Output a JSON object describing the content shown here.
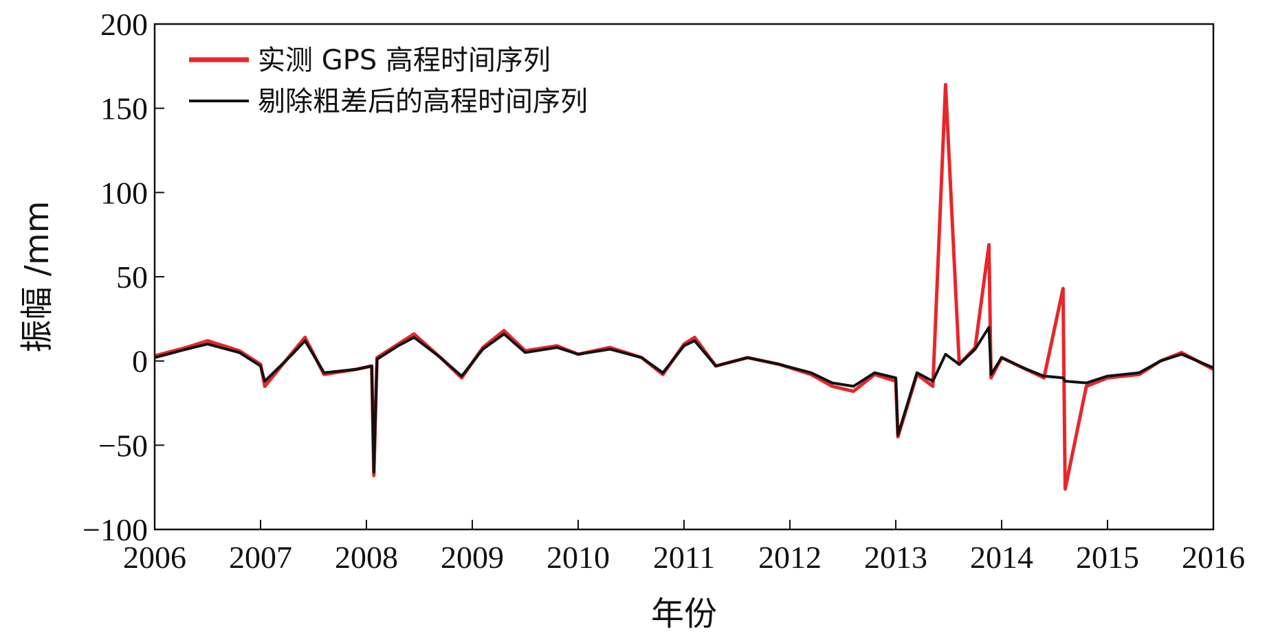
{
  "chart_data": {
    "type": "line",
    "xlabel": "年份",
    "ylabel": "振幅 /mm",
    "xlim": [
      2006,
      2016
    ],
    "ylim": [
      -100,
      200
    ],
    "xticks": [
      2006,
      2007,
      2008,
      2009,
      2010,
      2011,
      2012,
      2013,
      2014,
      2015,
      2016
    ],
    "yticks": [
      -100,
      -50,
      0,
      50,
      100,
      150,
      200
    ],
    "xtick_labels": [
      "2006",
      "2007",
      "2008",
      "2009",
      "2010",
      "2011",
      "2012",
      "2013",
      "2014",
      "2015",
      "2016"
    ],
    "ytick_labels": [
      "−100",
      "−50",
      "0",
      "50",
      "100",
      "150",
      "200"
    ],
    "grid": false,
    "legend_position": "top-left",
    "series": [
      {
        "name": "实测 GPS 高程时间序列",
        "color": "#e8262a",
        "x": [
          2006.0,
          2006.3,
          2006.5,
          2006.8,
          2007.0,
          2007.04,
          2007.3,
          2007.42,
          2007.6,
          2007.9,
          2008.05,
          2008.07,
          2008.1,
          2008.3,
          2008.45,
          2008.7,
          2008.9,
          2009.1,
          2009.3,
          2009.5,
          2009.8,
          2010.0,
          2010.3,
          2010.6,
          2010.8,
          2011.0,
          2011.1,
          2011.3,
          2011.6,
          2011.9,
          2012.2,
          2012.4,
          2012.6,
          2012.8,
          2013.0,
          2013.02,
          2013.2,
          2013.35,
          2013.47,
          2013.6,
          2013.75,
          2013.88,
          2013.9,
          2014.0,
          2014.2,
          2014.4,
          2014.58,
          2014.6,
          2014.8,
          2015.0,
          2015.3,
          2015.5,
          2015.7,
          2016.0
        ],
        "y": [
          3,
          8,
          12,
          6,
          -2,
          -15,
          5,
          14,
          -8,
          -5,
          -3,
          -68,
          2,
          10,
          16,
          2,
          -10,
          8,
          18,
          6,
          9,
          4,
          8,
          2,
          -8,
          10,
          14,
          -3,
          2,
          -2,
          -8,
          -15,
          -18,
          -8,
          -12,
          -45,
          -8,
          -15,
          164,
          -2,
          8,
          69,
          -10,
          2,
          -4,
          -10,
          43,
          -76,
          -15,
          -10,
          -8,
          0,
          5,
          -5
        ]
      },
      {
        "name": "剔除粗差后的高程时间序列",
        "color": "#111111",
        "x": [
          2006.0,
          2006.3,
          2006.5,
          2006.8,
          2007.0,
          2007.04,
          2007.3,
          2007.42,
          2007.6,
          2007.9,
          2008.05,
          2008.07,
          2008.1,
          2008.3,
          2008.45,
          2008.7,
          2008.9,
          2009.1,
          2009.3,
          2009.5,
          2009.8,
          2010.0,
          2010.3,
          2010.6,
          2010.8,
          2011.0,
          2011.1,
          2011.3,
          2011.6,
          2011.9,
          2012.2,
          2012.4,
          2012.6,
          2012.8,
          2013.0,
          2013.02,
          2013.2,
          2013.35,
          2013.47,
          2013.6,
          2013.75,
          2013.88,
          2013.9,
          2014.0,
          2014.2,
          2014.4,
          2014.58,
          2014.6,
          2014.8,
          2015.0,
          2015.3,
          2015.5,
          2015.7,
          2016.0
        ],
        "y": [
          2,
          7,
          10,
          5,
          -3,
          -12,
          4,
          12,
          -7,
          -5,
          -3,
          -66,
          1,
          9,
          14,
          2,
          -9,
          7,
          16,
          5,
          8,
          4,
          7,
          2,
          -7,
          9,
          12,
          -3,
          2,
          -2,
          -7,
          -13,
          -15,
          -7,
          -10,
          -44,
          -7,
          -12,
          4,
          -2,
          7,
          20,
          -8,
          2,
          -4,
          -9,
          -10,
          -12,
          -13,
          -9,
          -7,
          0,
          4,
          -4
        ]
      }
    ]
  }
}
